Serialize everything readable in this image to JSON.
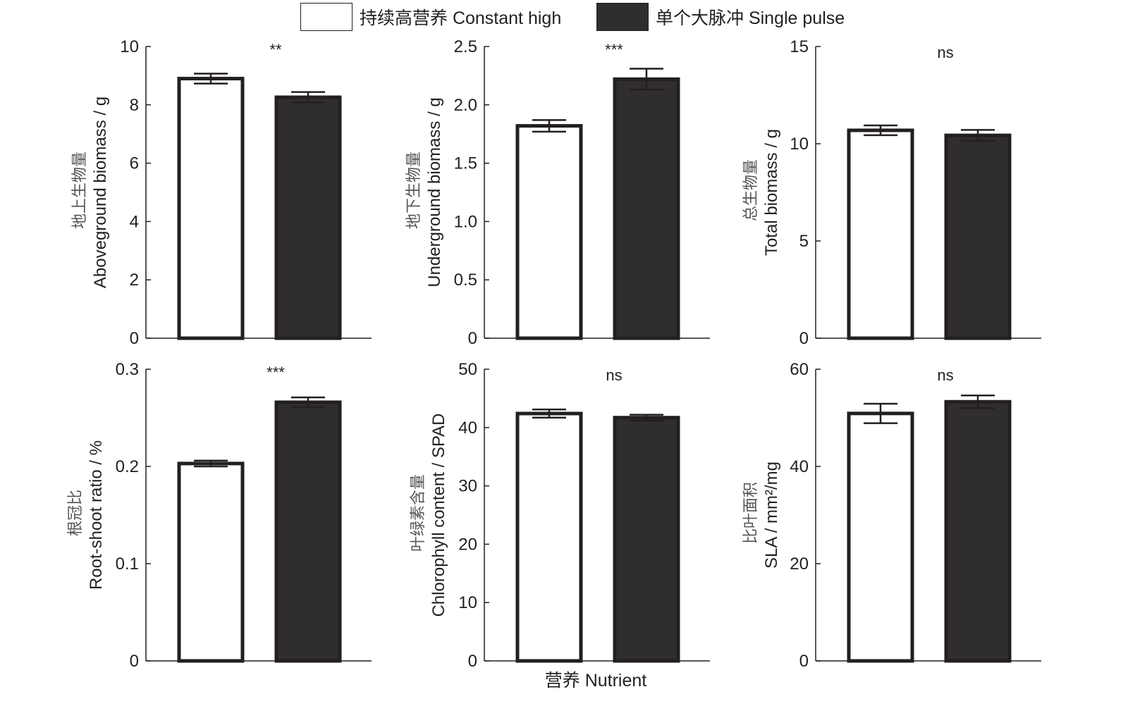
{
  "legend": [
    {
      "label": "持续高营养 Constant high",
      "color": "#ffffff"
    },
    {
      "label": "单个大脉冲 Single pulse",
      "color": "#302d2e"
    }
  ],
  "shared_xlabel": "营养 Nutrient",
  "colors": {
    "axis": "#231f20",
    "bar_outline": "#231f20",
    "constant_fill": "#ffffff",
    "pulse_fill": "#302d2e"
  },
  "chart_data": [
    {
      "type": "bar",
      "ylabel_cn": "地上生物量",
      "ylabel": "Aboveground biomass / g",
      "ylim": [
        0,
        10
      ],
      "yticks": [
        "0",
        "2",
        "4",
        "6",
        "8",
        "10"
      ],
      "ytick_values": [
        0,
        2,
        4,
        6,
        8,
        10
      ],
      "categories": [
        "Constant high",
        "Single pulse"
      ],
      "values": [
        8.9,
        8.26
      ],
      "error": [
        0.17,
        0.18
      ],
      "significance": "**"
    },
    {
      "type": "bar",
      "ylabel_cn": "地下生物量",
      "ylabel": "Underground biomass / g",
      "ylim": [
        0,
        2.5
      ],
      "yticks": [
        "0",
        "0.5",
        "1.0",
        "1.5",
        "2.0",
        "2.5"
      ],
      "ytick_values": [
        0,
        0.5,
        1.0,
        1.5,
        2.0,
        2.5
      ],
      "categories": [
        "Constant high",
        "Single pulse"
      ],
      "values": [
        1.82,
        2.22
      ],
      "error": [
        0.05,
        0.09
      ],
      "significance": "***"
    },
    {
      "type": "bar",
      "ylabel_cn": "总生物量",
      "ylabel": "Total biomass / g",
      "ylim": [
        0,
        15
      ],
      "yticks": [
        "0",
        "5",
        "10",
        "15"
      ],
      "ytick_values": [
        0,
        5,
        10,
        15
      ],
      "categories": [
        "Constant high",
        "Single pulse"
      ],
      "values": [
        10.69,
        10.43
      ],
      "error": [
        0.25,
        0.28
      ],
      "significance": "ns"
    },
    {
      "type": "bar",
      "ylabel_cn": "根冠比",
      "ylabel": "Root-shoot ratio / %",
      "ylim": [
        0,
        0.3
      ],
      "yticks": [
        "0",
        "0.1",
        "0.2",
        "0.3"
      ],
      "ytick_values": [
        0,
        0.1,
        0.2,
        0.3
      ],
      "categories": [
        "Constant high",
        "Single pulse"
      ],
      "values": [
        0.203,
        0.266
      ],
      "error": [
        0.003,
        0.005
      ],
      "significance": "***"
    },
    {
      "type": "bar",
      "ylabel_cn": "叶绿素含量",
      "ylabel": "Chlorophyll content / SPAD",
      "ylim": [
        0,
        50
      ],
      "yticks": [
        "0",
        "10",
        "20",
        "30",
        "40",
        "50"
      ],
      "ytick_values": [
        0,
        10,
        20,
        30,
        40,
        50
      ],
      "categories": [
        "Constant high",
        "Single pulse"
      ],
      "values": [
        42.4,
        41.7
      ],
      "error": [
        0.7,
        0.5
      ],
      "significance": "ns"
    },
    {
      "type": "bar",
      "ylabel_cn": "比叶面积",
      "ylabel": "SLA / mm²/mg",
      "ylim": [
        0,
        60
      ],
      "yticks": [
        "0",
        "20",
        "40",
        "60"
      ],
      "ytick_values": [
        0,
        20,
        40,
        60
      ],
      "categories": [
        "Constant high",
        "Single pulse"
      ],
      "values": [
        50.9,
        53.3
      ],
      "error": [
        2.0,
        1.3
      ],
      "significance": "ns"
    }
  ]
}
